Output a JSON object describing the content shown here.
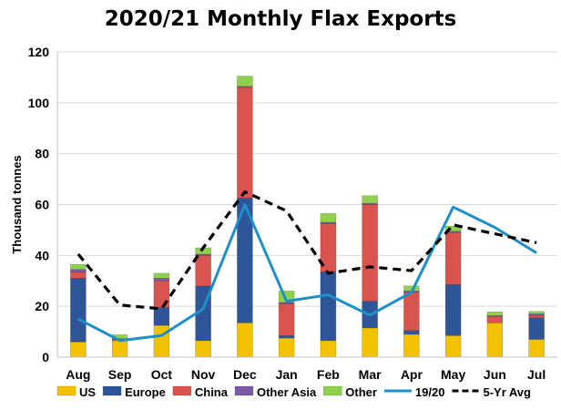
{
  "chart_data": {
    "type": "bar",
    "title": "2020/21 Monthly Flax Exports",
    "xlabel": "",
    "ylabel": "Thousand tonnes",
    "ylim": [
      0,
      120
    ],
    "yticks": [
      "0",
      "20",
      "40",
      "60",
      "80",
      "100",
      "120"
    ],
    "grid": true,
    "legend_position": "bottom",
    "categories": [
      "Aug",
      "Sep",
      "Oct",
      "Nov",
      "Dec",
      "Jan",
      "Feb",
      "Mar",
      "Apr",
      "May",
      "Jun",
      "Jul"
    ],
    "bar_series": [
      {
        "name": "US",
        "color": "#f2c200",
        "values": [
          6,
          6.5,
          12.5,
          6.5,
          13.5,
          7.5,
          6.5,
          11.5,
          9,
          8.5,
          13.5,
          7
        ]
      },
      {
        "name": "Europe",
        "color": "#2e5597",
        "values": [
          25,
          0,
          7,
          21.5,
          49,
          1,
          27,
          10.5,
          1.5,
          20,
          0,
          8.5
        ]
      },
      {
        "name": "China",
        "color": "#d9534f",
        "values": [
          2.5,
          0.5,
          10.5,
          12,
          43.5,
          12.5,
          19,
          38,
          15,
          20.5,
          2.5,
          1
        ]
      },
      {
        "name": "Other Asia",
        "color": "#7b5aa6",
        "values": [
          1,
          0.3,
          1,
          0.5,
          0.5,
          0.5,
          0.5,
          0.5,
          0.5,
          0.5,
          0.3,
          0.5
        ]
      },
      {
        "name": "Other",
        "color": "#8fd14f",
        "values": [
          2,
          1.5,
          2,
          2.5,
          4,
          4.5,
          3.5,
          3,
          2,
          2,
          1.5,
          1
        ]
      }
    ],
    "line_series": [
      {
        "name": "19/20",
        "color": "#1f8fc8",
        "dash": false,
        "values": [
          15,
          6.5,
          8.5,
          19,
          60,
          22,
          24.5,
          16.5,
          25.5,
          59,
          51,
          41
        ]
      },
      {
        "name": "5-Yr Avg",
        "color": "#000000",
        "dash": true,
        "values": [
          40.5,
          20.5,
          19,
          43,
          65,
          57.5,
          33,
          35.5,
          34,
          52,
          48.5,
          45
        ]
      }
    ]
  }
}
